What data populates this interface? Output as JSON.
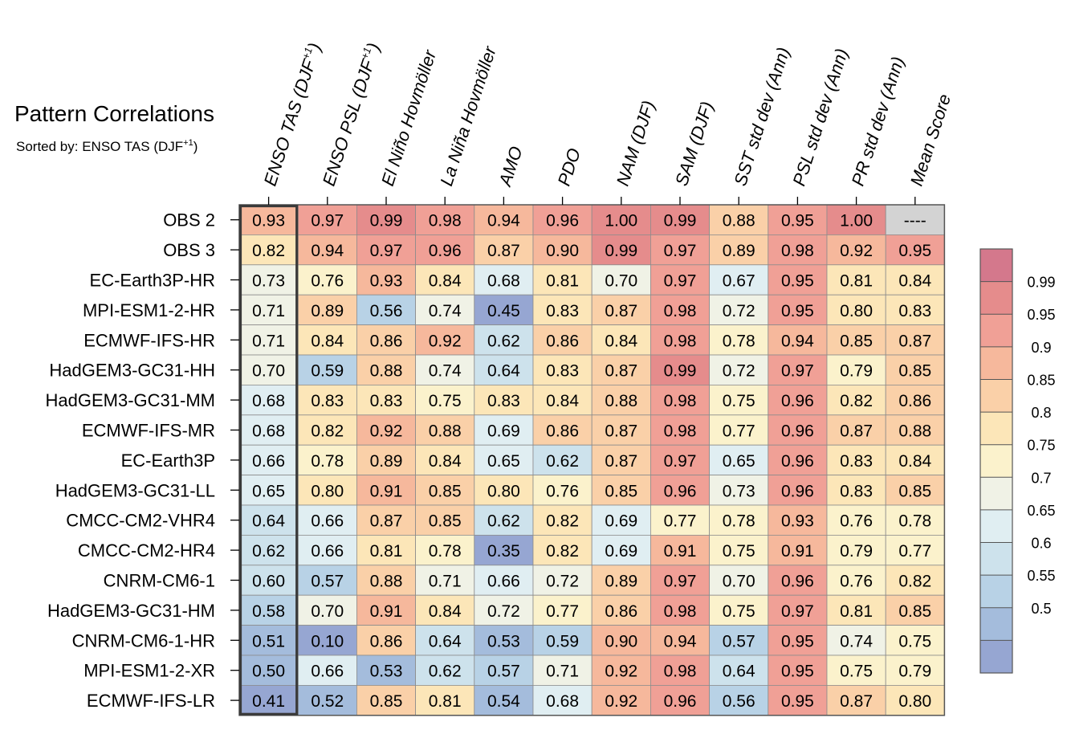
{
  "title": "Pattern Correlations",
  "subtitle": "Sorted by: ENSO TAS (DJF⁺¹)",
  "subtitle_main": "Sorted by: ENSO TAS (DJF",
  "subtitle_sup": "+1",
  "subtitle_end": ")",
  "chart_data": {
    "type": "heatmap",
    "title": "Pattern Correlations",
    "subtitle": "Sorted by: ENSO TAS (DJF⁺¹)",
    "columns": [
      "ENSO TAS (DJF⁺¹)",
      "ENSO PSL (DJF⁺¹)",
      "El Niño Hovmöller",
      "La Niña Hovmöller",
      "AMO",
      "PDO",
      "NAM (DJF)",
      "SAM (DJF)",
      "SST std dev (Ann)",
      "PSL std dev (Ann)",
      "PR std dev (Ann)",
      "Mean Score"
    ],
    "rows": [
      "OBS 2",
      "OBS 3",
      "EC-Earth3P-HR",
      "MPI-ESM1-2-HR",
      "ECMWF-IFS-HR",
      "HadGEM3-GC31-HH",
      "HadGEM3-GC31-MM",
      "ECMWF-IFS-MR",
      "EC-Earth3P",
      "HadGEM3-GC31-LL",
      "CMCC-CM2-VHR4",
      "CMCC-CM2-HR4",
      "CNRM-CM6-1",
      "HadGEM3-GC31-HM",
      "CNRM-CM6-1-HR",
      "MPI-ESM1-2-XR",
      "ECMWF-IFS-LR"
    ],
    "values": [
      [
        "0.93",
        "0.97",
        "0.99",
        "0.98",
        "0.94",
        "0.96",
        "1.00",
        "0.99",
        "0.88",
        "0.95",
        "1.00",
        "----"
      ],
      [
        "0.82",
        "0.94",
        "0.97",
        "0.96",
        "0.87",
        "0.90",
        "0.99",
        "0.97",
        "0.89",
        "0.98",
        "0.92",
        "0.95"
      ],
      [
        "0.73",
        "0.76",
        "0.93",
        "0.84",
        "0.68",
        "0.81",
        "0.70",
        "0.97",
        "0.67",
        "0.95",
        "0.81",
        "0.84"
      ],
      [
        "0.71",
        "0.89",
        "0.56",
        "0.74",
        "0.45",
        "0.83",
        "0.87",
        "0.98",
        "0.72",
        "0.95",
        "0.80",
        "0.83"
      ],
      [
        "0.71",
        "0.84",
        "0.86",
        "0.92",
        "0.62",
        "0.86",
        "0.84",
        "0.98",
        "0.78",
        "0.94",
        "0.85",
        "0.87"
      ],
      [
        "0.70",
        "0.59",
        "0.88",
        "0.74",
        "0.64",
        "0.83",
        "0.87",
        "0.99",
        "0.72",
        "0.97",
        "0.79",
        "0.85"
      ],
      [
        "0.68",
        "0.83",
        "0.83",
        "0.75",
        "0.83",
        "0.84",
        "0.88",
        "0.98",
        "0.75",
        "0.96",
        "0.82",
        "0.86"
      ],
      [
        "0.68",
        "0.82",
        "0.92",
        "0.88",
        "0.69",
        "0.86",
        "0.87",
        "0.98",
        "0.77",
        "0.96",
        "0.87",
        "0.88"
      ],
      [
        "0.66",
        "0.78",
        "0.89",
        "0.84",
        "0.65",
        "0.62",
        "0.87",
        "0.97",
        "0.65",
        "0.96",
        "0.83",
        "0.84"
      ],
      [
        "0.65",
        "0.80",
        "0.91",
        "0.85",
        "0.80",
        "0.76",
        "0.85",
        "0.96",
        "0.73",
        "0.96",
        "0.83",
        "0.85"
      ],
      [
        "0.64",
        "0.66",
        "0.87",
        "0.85",
        "0.62",
        "0.82",
        "0.69",
        "0.77",
        "0.78",
        "0.93",
        "0.76",
        "0.78"
      ],
      [
        "0.62",
        "0.66",
        "0.81",
        "0.78",
        "0.35",
        "0.82",
        "0.69",
        "0.91",
        "0.75",
        "0.91",
        "0.79",
        "0.77"
      ],
      [
        "0.60",
        "0.57",
        "0.88",
        "0.71",
        "0.66",
        "0.72",
        "0.89",
        "0.97",
        "0.70",
        "0.96",
        "0.76",
        "0.82"
      ],
      [
        "0.58",
        "0.70",
        "0.91",
        "0.84",
        "0.72",
        "0.77",
        "0.86",
        "0.98",
        "0.75",
        "0.97",
        "0.81",
        "0.85"
      ],
      [
        "0.51",
        "0.10",
        "0.86",
        "0.64",
        "0.53",
        "0.59",
        "0.90",
        "0.94",
        "0.57",
        "0.95",
        "0.74",
        "0.75"
      ],
      [
        "0.50",
        "0.66",
        "0.53",
        "0.62",
        "0.57",
        "0.71",
        "0.92",
        "0.98",
        "0.64",
        "0.95",
        "0.75",
        "0.79"
      ],
      [
        "0.41",
        "0.52",
        "0.85",
        "0.81",
        "0.54",
        "0.68",
        "0.92",
        "0.96",
        "0.56",
        "0.95",
        "0.87",
        "0.80"
      ]
    ],
    "highlighted_column": "ENSO TAS (DJF⁺¹)",
    "colorbar": {
      "tick_labels": [
        "0.99",
        "0.95",
        "0.9",
        "0.85",
        "0.8",
        "0.75",
        "0.7",
        "0.65",
        "0.6",
        "0.55",
        "0.5"
      ],
      "levels": [
        0.99,
        0.95,
        0.9,
        0.85,
        0.8,
        0.75,
        0.7,
        0.65,
        0.6,
        0.55,
        0.5
      ],
      "colors_top_to_bottom": [
        "#d4788c",
        "#e58c8c",
        "#f0a096",
        "#f6b89c",
        "#fad0a8",
        "#fce6b8",
        "#fbf2cc",
        "#f0f2e6",
        "#e0eef2",
        "#cde2ec",
        "#b8d2e6",
        "#a4bcdc",
        "#96a6d2"
      ],
      "missing_color": "#d3d3d3"
    }
  }
}
